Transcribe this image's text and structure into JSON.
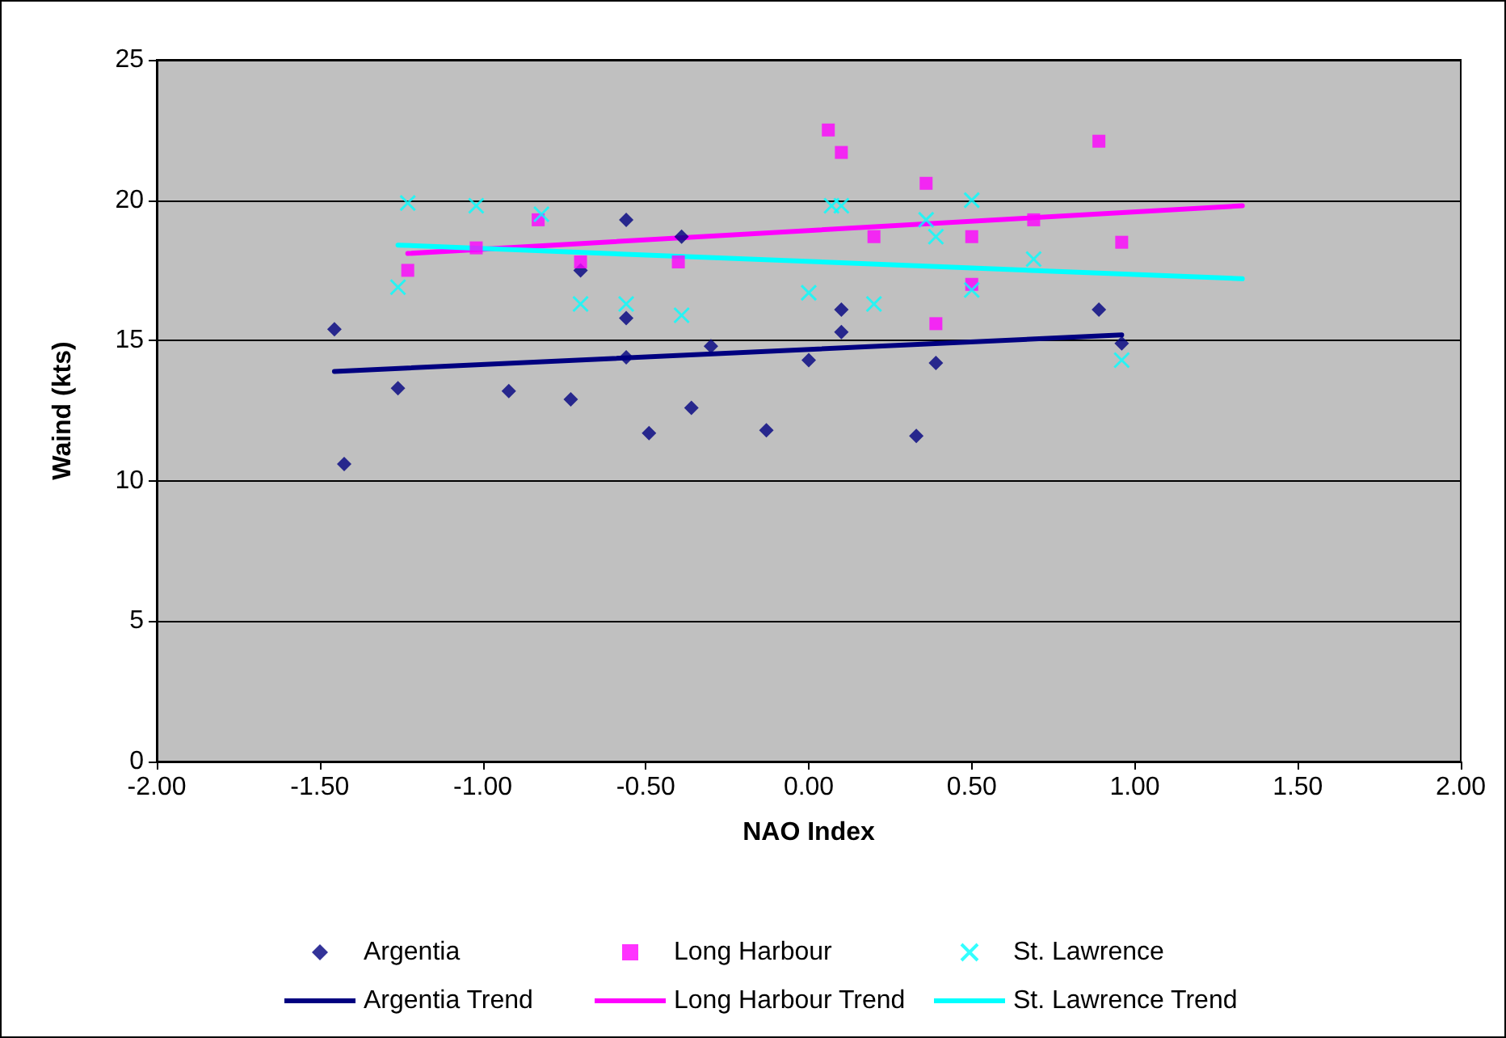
{
  "chart_data": {
    "type": "scatter",
    "xlabel": "NAO Index",
    "ylabel": "Waind (kts)",
    "xlim": [
      -2,
      2
    ],
    "xticks": [
      {
        "value": -2,
        "label": "-2.00"
      },
      {
        "value": -1.5,
        "label": "-1.50"
      },
      {
        "value": -1,
        "label": "-1.00"
      },
      {
        "value": -0.5,
        "label": "-0.50"
      },
      {
        "value": 0,
        "label": "0.00"
      },
      {
        "value": 0.5,
        "label": "0.50"
      },
      {
        "value": 1,
        "label": "1.00"
      },
      {
        "value": 1.5,
        "label": "1.50"
      },
      {
        "value": 2,
        "label": "2.00"
      }
    ],
    "ylim": [
      0,
      25
    ],
    "yticks": [
      0,
      5,
      10,
      15,
      20,
      25
    ],
    "grid": "y",
    "legend": "bottom",
    "series": [
      {
        "name": "Argentia",
        "color": "#000080",
        "marker": "diamond",
        "x": [
          -1.455,
          -1.425,
          -1.26,
          -0.92,
          -0.73,
          -0.7,
          -0.56,
          -0.56,
          -0.56,
          -0.49,
          -0.39,
          -0.36,
          -0.3,
          -0.13,
          0.0,
          0.1,
          0.1,
          0.33,
          0.39,
          0.89,
          0.96
        ],
        "values": [
          15.4,
          10.6,
          13.3,
          13.2,
          12.9,
          17.5,
          19.3,
          15.8,
          14.4,
          11.7,
          18.7,
          12.6,
          14.8,
          11.8,
          14.3,
          16.1,
          15.3,
          11.6,
          14.2,
          16.1,
          14.9
        ]
      },
      {
        "name": "Long Harbour",
        "color": "#ff00ff",
        "marker": "square",
        "x": [
          -1.23,
          -1.02,
          -0.83,
          -0.7,
          -0.4,
          0.06,
          0.1,
          0.2,
          0.36,
          0.39,
          0.5,
          0.5,
          0.69,
          0.89,
          0.96
        ],
        "values": [
          17.5,
          18.3,
          19.3,
          17.8,
          17.8,
          22.5,
          21.7,
          18.7,
          20.6,
          15.6,
          18.7,
          17.0,
          19.3,
          22.1,
          18.5
        ]
      },
      {
        "name": "St. Lawrence",
        "color": "#00ffff",
        "marker": "cross",
        "x": [
          -1.23,
          -1.26,
          -1.02,
          -0.82,
          -0.7,
          -0.56,
          -0.39,
          0.0,
          0.07,
          0.1,
          0.2,
          0.36,
          0.39,
          0.5,
          0.5,
          0.69,
          0.96
        ],
        "values": [
          19.9,
          16.9,
          19.8,
          19.5,
          16.3,
          16.3,
          15.9,
          16.7,
          19.8,
          19.8,
          16.3,
          19.3,
          18.7,
          20.0,
          16.8,
          17.9,
          14.3
        ]
      },
      {
        "name": "Argentia Trend",
        "type": "line",
        "color": "#000080",
        "marker": "none",
        "line_style": "solid",
        "x": [
          -1.455,
          0.96
        ],
        "values": [
          13.9,
          15.2
        ]
      },
      {
        "name": "Long Harbour Trend",
        "type": "line",
        "color": "#ff00ff",
        "marker": "none",
        "line_style": "solid",
        "x": [
          -1.23,
          1.33
        ],
        "values": [
          18.1,
          19.8
        ]
      },
      {
        "name": "St. Lawrence Trend",
        "type": "line",
        "color": "#00ffff",
        "marker": "none",
        "line_style": "solid",
        "x": [
          -1.26,
          1.33
        ],
        "values": [
          18.4,
          17.2
        ]
      }
    ]
  }
}
